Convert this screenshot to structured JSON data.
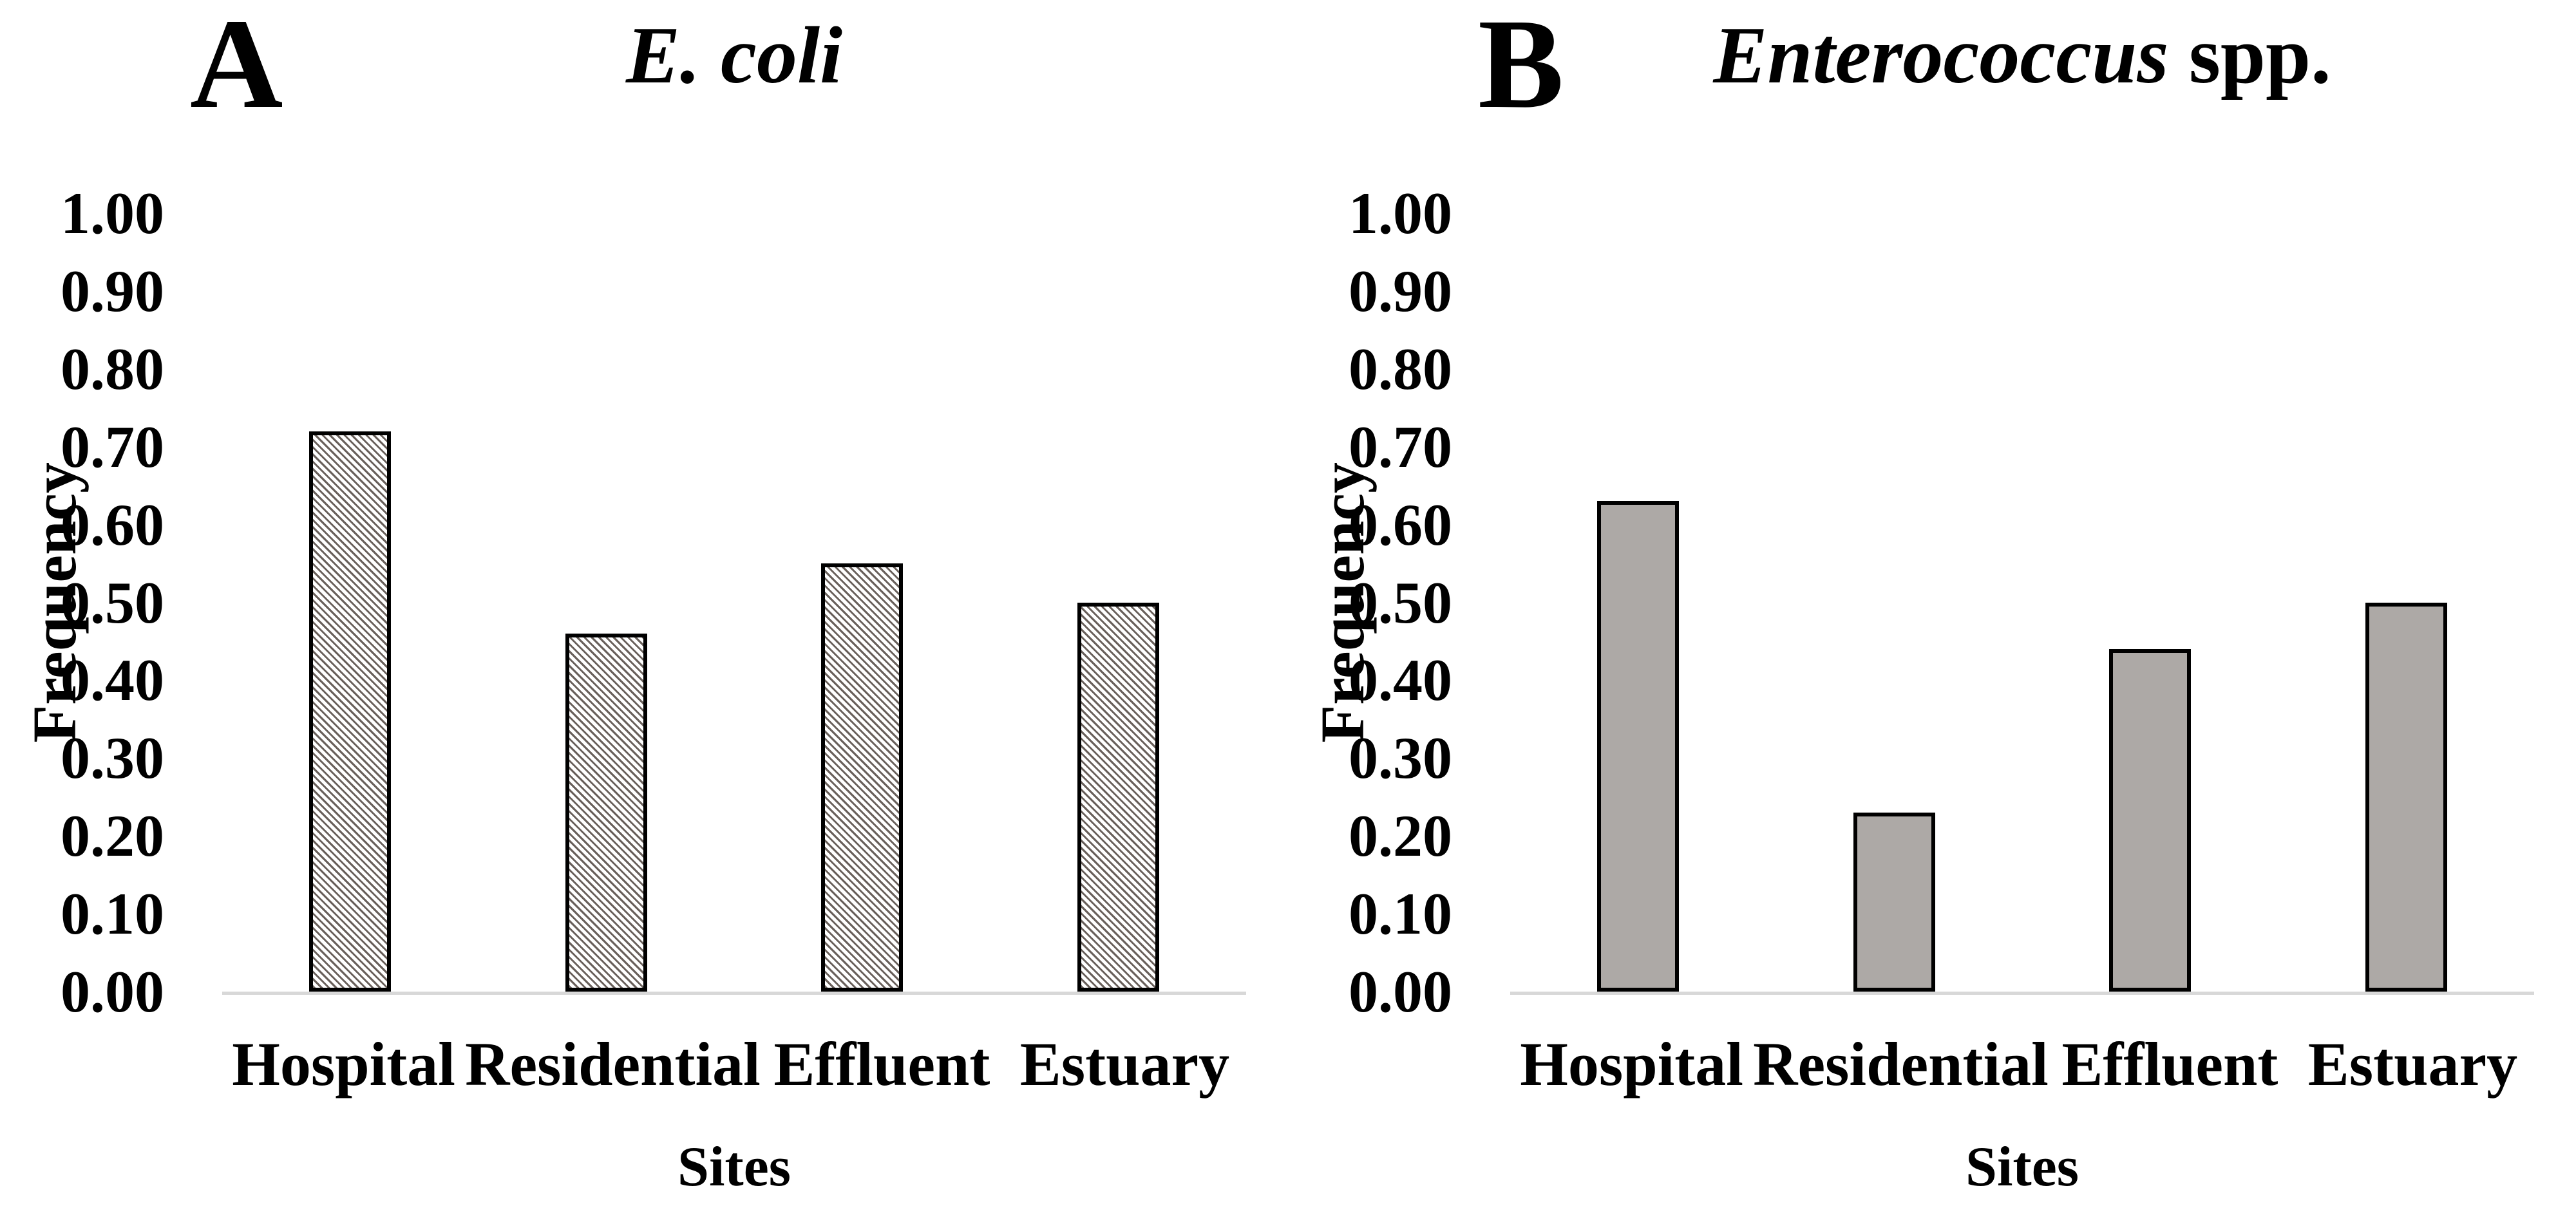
{
  "figure": {
    "background": "#ffffff",
    "colors": {
      "text": "#000000",
      "bar_border": "#000000",
      "solid_bar_fill": "#ada9a6",
      "hatch_stripe": "#69605b",
      "hatch_background": "#ffffff",
      "baseline": "#d8d8d8"
    }
  },
  "chart_data": [
    {
      "type": "bar",
      "panel_label": "A",
      "title_italic": "E. coli",
      "title_regular": "",
      "xlabel": "Sites",
      "ylabel": "Frequency",
      "categories": [
        "Hospital",
        "Residential",
        "Effluent",
        "Estuary"
      ],
      "values": [
        0.72,
        0.46,
        0.55,
        0.5
      ],
      "ylim": [
        0.0,
        1.0
      ],
      "yticks": [
        "0.00",
        "0.10",
        "0.20",
        "0.30",
        "0.40",
        "0.50",
        "0.60",
        "0.70",
        "0.80",
        "0.90",
        "1.00"
      ],
      "bar_style": "hatched-diagonal",
      "grid": false,
      "legend": false
    },
    {
      "type": "bar",
      "panel_label": "B",
      "title_italic": "Enterococcus",
      "title_regular": " spp.",
      "xlabel": "Sites",
      "ylabel": "Frequency",
      "categories": [
        "Hospital",
        "Residential",
        "Effluent",
        "Estuary"
      ],
      "values": [
        0.63,
        0.23,
        0.44,
        0.5
      ],
      "ylim": [
        0.0,
        1.0
      ],
      "yticks": [
        "0.00",
        "0.10",
        "0.20",
        "0.30",
        "0.40",
        "0.50",
        "0.60",
        "0.70",
        "0.80",
        "0.90",
        "1.00"
      ],
      "bar_style": "solid-gray",
      "grid": false,
      "legend": false
    }
  ]
}
